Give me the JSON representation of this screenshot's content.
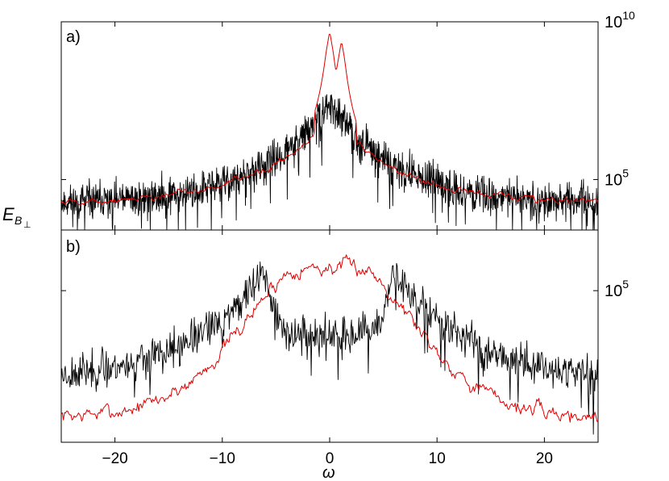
{
  "figure": {
    "ylabel": "E",
    "ylabel_subscript": "B",
    "ylabel_subsubscript": "⊥",
    "xlabel": "ω"
  },
  "chart_data": [
    {
      "type": "line",
      "panel_label": "a)",
      "xlim": [
        -25,
        25
      ],
      "yscale": "log",
      "ylim_log10": [
        3.4,
        10
      ],
      "yticks": [
        {
          "log10": 5,
          "base": "10",
          "exp": "5"
        },
        {
          "log10": 10,
          "base": "10",
          "exp": "10"
        }
      ],
      "series": [
        {
          "color": "#000000",
          "style": "noisy",
          "peak_log10": 7.4,
          "tail_log10": 4.2,
          "width": 7,
          "noise": 0.85,
          "seed": 11
        },
        {
          "color": "#e00000",
          "style": "smooth",
          "peak_log10": 7.0,
          "tail_log10": 4.25,
          "width": 7,
          "noise": 0.15,
          "seed": 5,
          "spikes": [
            {
              "x": 0.0,
              "log10": 9.7
            },
            {
              "x": 1.1,
              "log10": 9.4
            }
          ]
        }
      ]
    },
    {
      "type": "line",
      "panel_label": "b)",
      "xlim": [
        -25,
        25
      ],
      "yscale": "log",
      "ylim_log10": [
        2.0,
        6.2
      ],
      "yticks": [
        {
          "log10": 5,
          "base": "10",
          "exp": "5"
        }
      ],
      "series": [
        {
          "color": "#000000",
          "style": "noisy_dip",
          "peak_log10": 5.4,
          "center_log10": 4.1,
          "tail_log10": 3.2,
          "peak_x": 6,
          "noise": 0.55,
          "seed": 23
        },
        {
          "color": "#e00000",
          "style": "plateau",
          "center_log10": 5.45,
          "tail_log10": 2.5,
          "width": 8,
          "noise": 0.2,
          "seed": 7
        }
      ]
    }
  ],
  "xticks": [
    {
      "value": -20,
      "label": "−20"
    },
    {
      "value": -10,
      "label": "−10"
    },
    {
      "value": 0,
      "label": "0"
    },
    {
      "value": 10,
      "label": "10"
    },
    {
      "value": 20,
      "label": "20"
    }
  ]
}
